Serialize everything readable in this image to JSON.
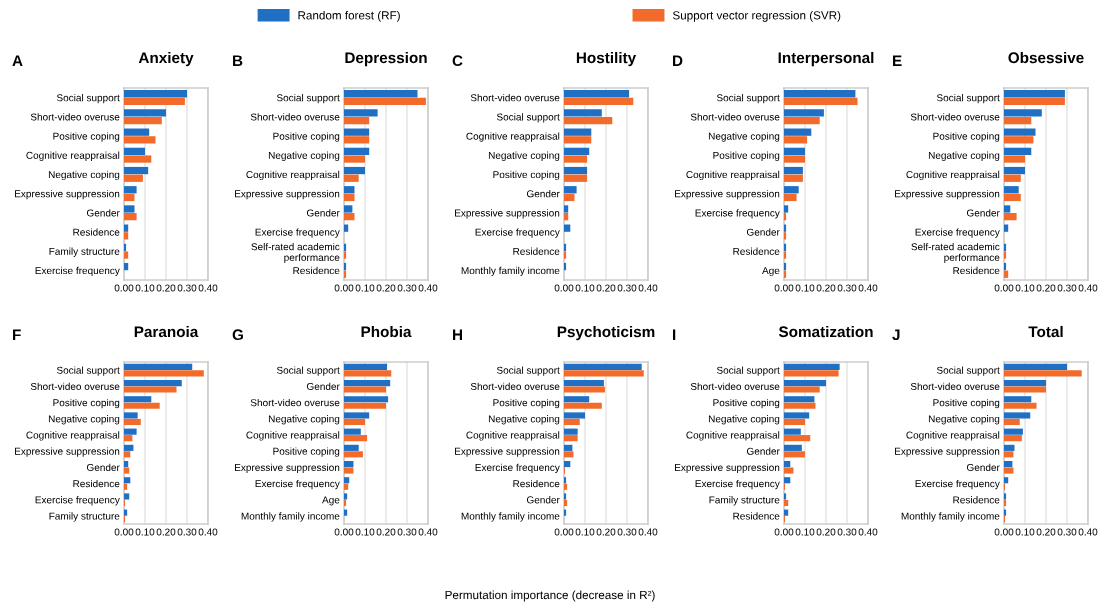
{
  "chart_data": [
    {
      "type": "bar",
      "orientation": "horizontal",
      "title": "Anxiety",
      "annotations": [
        "A",
        "Permutation importance (decrease in R²)"
      ],
      "legend": "top",
      "grid": "x",
      "xlim": [
        0,
        0.4
      ],
      "xticks": [
        {
          "value": 0,
          "label": "0.00"
        },
        {
          "value": 0.1,
          "label": "0.10"
        },
        {
          "value": 0.2,
          "label": "0.20"
        },
        {
          "value": 0.3,
          "label": "0.30"
        },
        {
          "value": 0.4,
          "label": "0.40"
        }
      ],
      "categories": [
        "Social support",
        "Short-video overuse",
        "Positive coping",
        "Cognitive reappraisal",
        "Negative coping",
        "Expressive suppression",
        "Gender",
        "Residence",
        "Family structure",
        "Exercise frequency"
      ],
      "series": [
        {
          "name": "Random forest (RF)",
          "color": "#1f6fc5",
          "values": [
            0.3,
            0.2,
            0.12,
            0.1,
            0.115,
            0.06,
            0.05,
            0.02,
            0.01,
            0.02
          ]
        },
        {
          "name": "Support vector regression (SVR)",
          "color": "#f26b2a",
          "values": [
            0.29,
            0.18,
            0.15,
            0.13,
            0.09,
            0.05,
            0.06,
            0.02,
            0.02,
            0.0
          ]
        }
      ]
    },
    {
      "type": "bar",
      "orientation": "horizontal",
      "title": "Depression",
      "annotations": [
        "B"
      ],
      "grid": "x",
      "xlim": [
        0,
        0.4
      ],
      "xticks": [
        {
          "value": 0,
          "label": "0.00"
        },
        {
          "value": 0.1,
          "label": "0.10"
        },
        {
          "value": 0.2,
          "label": "0.20"
        },
        {
          "value": 0.3,
          "label": "0.30"
        },
        {
          "value": 0.4,
          "label": "0.40"
        }
      ],
      "categories": [
        "Social support",
        "Short-video overuse",
        "Positive coping",
        "Negative coping",
        "Cognitive reappraisal",
        "Expressive suppression",
        "Gender",
        "Exercise frequency",
        "Self-rated academic\nperformance",
        "Residence"
      ],
      "series": [
        {
          "name": "Random forest (RF)",
          "color": "#1f6fc5",
          "values": [
            0.35,
            0.16,
            0.12,
            0.12,
            0.1,
            0.05,
            0.04,
            0.02,
            0.01,
            0.01
          ]
        },
        {
          "name": "Support vector regression (SVR)",
          "color": "#f26b2a",
          "values": [
            0.39,
            0.12,
            0.12,
            0.1,
            0.07,
            0.05,
            0.05,
            0.0,
            0.01,
            0.01
          ]
        }
      ]
    },
    {
      "type": "bar",
      "orientation": "horizontal",
      "title": "Hostility",
      "annotations": [
        "C"
      ],
      "grid": "x",
      "xlim": [
        0,
        0.4
      ],
      "xticks": [
        {
          "value": 0,
          "label": "0.00"
        },
        {
          "value": 0.1,
          "label": "0.10"
        },
        {
          "value": 0.2,
          "label": "0.20"
        },
        {
          "value": 0.3,
          "label": "0.30"
        },
        {
          "value": 0.4,
          "label": "0.40"
        }
      ],
      "categories": [
        "Short-video overuse",
        "Social support",
        "Cognitive reappraisal",
        "Negative coping",
        "Positive coping",
        "Gender",
        "Expressive suppression",
        "Exercise frequency",
        "Residence",
        "Monthly family income"
      ],
      "series": [
        {
          "name": "Random forest (RF)",
          "color": "#1f6fc5",
          "values": [
            0.31,
            0.18,
            0.13,
            0.12,
            0.11,
            0.06,
            0.02,
            0.03,
            0.01,
            0.01
          ]
        },
        {
          "name": "Support vector regression (SVR)",
          "color": "#f26b2a",
          "values": [
            0.33,
            0.23,
            0.13,
            0.11,
            0.11,
            0.05,
            0.02,
            0.0,
            0.01,
            0.0
          ]
        }
      ]
    },
    {
      "type": "bar",
      "orientation": "horizontal",
      "title": "Interpersonal",
      "annotations": [
        "D"
      ],
      "grid": "x",
      "xlim": [
        0,
        0.4
      ],
      "xticks": [
        {
          "value": 0,
          "label": "0.00"
        },
        {
          "value": 0.1,
          "label": "0.10"
        },
        {
          "value": 0.2,
          "label": "0.20"
        },
        {
          "value": 0.3,
          "label": "0.30"
        },
        {
          "value": 0.4,
          "label": "0.40"
        }
      ],
      "categories": [
        "Social support",
        "Short-video overuse",
        "Negative coping",
        "Positive coping",
        "Cognitive reappraisal",
        "Expressive suppression",
        "Exercise frequency",
        "Gender",
        "Residence",
        "Age"
      ],
      "series": [
        {
          "name": "Random forest (RF)",
          "color": "#1f6fc5",
          "values": [
            0.34,
            0.19,
            0.13,
            0.1,
            0.09,
            0.07,
            0.02,
            0.01,
            0.01,
            0.01
          ]
        },
        {
          "name": "Support vector regression (SVR)",
          "color": "#f26b2a",
          "values": [
            0.35,
            0.17,
            0.11,
            0.1,
            0.09,
            0.06,
            0.01,
            0.01,
            0.01,
            0.01
          ]
        }
      ]
    },
    {
      "type": "bar",
      "orientation": "horizontal",
      "title": "Obsessive",
      "annotations": [
        "E"
      ],
      "grid": "x",
      "xlim": [
        0,
        0.4
      ],
      "xticks": [
        {
          "value": 0,
          "label": "0.00"
        },
        {
          "value": 0.1,
          "label": "0.10"
        },
        {
          "value": 0.2,
          "label": "0.20"
        },
        {
          "value": 0.3,
          "label": "0.30"
        },
        {
          "value": 0.4,
          "label": "0.40"
        }
      ],
      "categories": [
        "Social support",
        "Short-video overuse",
        "Positive coping",
        "Negative coping",
        "Cognitive reappraisal",
        "Expressive suppression",
        "Gender",
        "Exercise frequency",
        "Self-rated academic\nperformance",
        "Residence"
      ],
      "series": [
        {
          "name": "Random forest (RF)",
          "color": "#1f6fc5",
          "values": [
            0.29,
            0.18,
            0.15,
            0.13,
            0.1,
            0.07,
            0.03,
            0.02,
            0.01,
            0.01
          ]
        },
        {
          "name": "Support vector regression (SVR)",
          "color": "#f26b2a",
          "values": [
            0.29,
            0.13,
            0.14,
            0.1,
            0.08,
            0.08,
            0.06,
            0.0,
            0.01,
            0.02
          ]
        }
      ]
    },
    {
      "type": "bar",
      "orientation": "horizontal",
      "title": "Paranoia",
      "annotations": [
        "F"
      ],
      "grid": "x",
      "xlim": [
        0,
        0.4
      ],
      "xticks": [
        {
          "value": 0,
          "label": "0.00"
        },
        {
          "value": 0.1,
          "label": "0.10"
        },
        {
          "value": 0.2,
          "label": "0.20"
        },
        {
          "value": 0.3,
          "label": "0.30"
        },
        {
          "value": 0.4,
          "label": "0.40"
        }
      ],
      "categories": [
        "Social support",
        "Short-video overuse",
        "Positive coping",
        "Negative coping",
        "Cognitive reappraisal",
        "Expressive suppression",
        "Gender",
        "Residence",
        "Exercise frequency",
        "Family structure"
      ],
      "series": [
        {
          "name": "Random forest (RF)",
          "color": "#1f6fc5",
          "values": [
            0.325,
            0.275,
            0.13,
            0.065,
            0.06,
            0.045,
            0.02,
            0.03,
            0.025,
            0.015
          ]
        },
        {
          "name": "Support vector regression (SVR)",
          "color": "#f26b2a",
          "values": [
            0.38,
            0.25,
            0.17,
            0.08,
            0.04,
            0.03,
            0.025,
            0.015,
            0.005,
            0.005
          ]
        }
      ]
    },
    {
      "type": "bar",
      "orientation": "horizontal",
      "title": "Phobia",
      "annotations": [
        "G"
      ],
      "grid": "x",
      "xlim": [
        0,
        0.4
      ],
      "xticks": [
        {
          "value": 0,
          "label": "0.00"
        },
        {
          "value": 0.1,
          "label": "0.10"
        },
        {
          "value": 0.2,
          "label": "0.20"
        },
        {
          "value": 0.3,
          "label": "0.30"
        },
        {
          "value": 0.4,
          "label": "0.40"
        }
      ],
      "categories": [
        "Social support",
        "Gender",
        "Short-video overuse",
        "Negative coping",
        "Cognitive reappraisal",
        "Positive coping",
        "Expressive suppression",
        "Exercise frequency",
        "Age",
        "Monthly family income"
      ],
      "series": [
        {
          "name": "Random forest (RF)",
          "color": "#1f6fc5",
          "values": [
            0.205,
            0.22,
            0.21,
            0.12,
            0.08,
            0.07,
            0.045,
            0.025,
            0.015,
            0.015
          ]
        },
        {
          "name": "Support vector regression (SVR)",
          "color": "#f26b2a",
          "values": [
            0.225,
            0.2,
            0.2,
            0.1,
            0.11,
            0.09,
            0.045,
            0.02,
            0.01,
            0.0
          ]
        }
      ]
    },
    {
      "type": "bar",
      "orientation": "horizontal",
      "title": "Psychoticism",
      "annotations": [
        "H"
      ],
      "grid": "x",
      "xlim": [
        0,
        0.4
      ],
      "xticks": [
        {
          "value": 0,
          "label": "0.00"
        },
        {
          "value": 0.1,
          "label": "0.10"
        },
        {
          "value": 0.2,
          "label": "0.20"
        },
        {
          "value": 0.3,
          "label": "0.30"
        },
        {
          "value": 0.4,
          "label": "0.40"
        }
      ],
      "categories": [
        "Social support",
        "Short-video overuse",
        "Positive coping",
        "Negative coping",
        "Cognitive reappraisal",
        "Expressive suppression",
        "Exercise frequency",
        "Residence",
        "Gender",
        "Monthly family income"
      ],
      "series": [
        {
          "name": "Random forest (RF)",
          "color": "#1f6fc5",
          "values": [
            0.37,
            0.19,
            0.12,
            0.1,
            0.065,
            0.04,
            0.03,
            0.01,
            0.01,
            0.01
          ]
        },
        {
          "name": "Support vector regression (SVR)",
          "color": "#f26b2a",
          "values": [
            0.38,
            0.195,
            0.18,
            0.075,
            0.065,
            0.045,
            0.005,
            0.015,
            0.015,
            0.0
          ]
        }
      ]
    },
    {
      "type": "bar",
      "orientation": "horizontal",
      "title": "Somatization",
      "annotations": [
        "I"
      ],
      "grid": "x",
      "xlim": [
        0,
        0.4
      ],
      "xticks": [
        {
          "value": 0,
          "label": "0.00"
        },
        {
          "value": 0.1,
          "label": "0.10"
        },
        {
          "value": 0.2,
          "label": "0.20"
        },
        {
          "value": 0.3,
          "label": "0.30"
        },
        {
          "value": 0.4,
          "label": "0.40"
        }
      ],
      "categories": [
        "Social support",
        "Short-video overuse",
        "Positive coping",
        "Negative coping",
        "Cognitive reappraisal",
        "Gender",
        "Expressive suppression",
        "Exercise frequency",
        "Family structure",
        "Residence"
      ],
      "series": [
        {
          "name": "Random forest (RF)",
          "color": "#1f6fc5",
          "values": [
            0.265,
            0.2,
            0.145,
            0.12,
            0.08,
            0.085,
            0.03,
            0.03,
            0.01,
            0.02
          ]
        },
        {
          "name": "Support vector regression (SVR)",
          "color": "#f26b2a",
          "values": [
            0.26,
            0.17,
            0.15,
            0.1,
            0.125,
            0.1,
            0.045,
            0.005,
            0.02,
            0.005
          ]
        }
      ]
    },
    {
      "type": "bar",
      "orientation": "horizontal",
      "title": "Total",
      "annotations": [
        "J"
      ],
      "grid": "x",
      "xlim": [
        0,
        0.4
      ],
      "xticks": [
        {
          "value": 0,
          "label": "0.00"
        },
        {
          "value": 0.1,
          "label": "0.10"
        },
        {
          "value": 0.2,
          "label": "0.20"
        },
        {
          "value": 0.3,
          "label": "0.30"
        },
        {
          "value": 0.4,
          "label": "0.40"
        }
      ],
      "categories": [
        "Social support",
        "Short-video overuse",
        "Positive coping",
        "Negative coping",
        "Cognitive reappraisal",
        "Expressive suppression",
        "Gender",
        "Exercise frequency",
        "Residence",
        "Monthly family income"
      ],
      "series": [
        {
          "name": "Random forest (RF)",
          "color": "#1f6fc5",
          "values": [
            0.3,
            0.2,
            0.13,
            0.125,
            0.09,
            0.05,
            0.04,
            0.02,
            0.01,
            0.01
          ]
        },
        {
          "name": "Support vector regression (SVR)",
          "color": "#f26b2a",
          "values": [
            0.37,
            0.2,
            0.155,
            0.075,
            0.085,
            0.045,
            0.045,
            0.005,
            0.01,
            0.005
          ]
        }
      ]
    }
  ]
}
